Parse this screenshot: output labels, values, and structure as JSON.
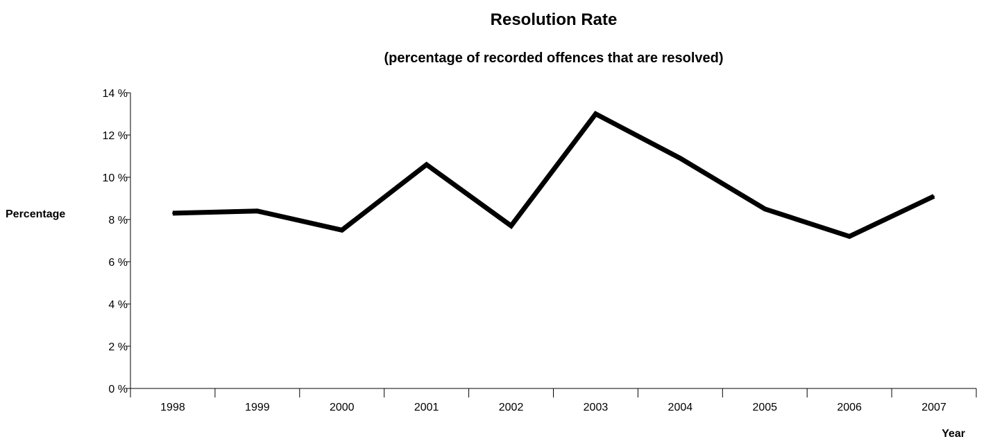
{
  "chart_data": {
    "type": "line",
    "title": "Resolution Rate",
    "subtitle": "(percentage of recorded offences that are resolved)",
    "xlabel": "Year",
    "ylabel": "Percentage",
    "categories": [
      "1998",
      "1999",
      "2000",
      "2001",
      "2002",
      "2003",
      "2004",
      "2005",
      "2006",
      "2007"
    ],
    "series": [
      {
        "values": [
          8.3,
          8.4,
          7.5,
          10.6,
          7.7,
          13.0,
          10.9,
          8.5,
          7.2,
          9.1
        ]
      }
    ],
    "ylim": [
      0,
      14
    ],
    "y_ticks": [
      0,
      2,
      4,
      6,
      8,
      10,
      12,
      14
    ],
    "y_tick_labels": [
      "0 %",
      "2 %",
      "4 %",
      "6 %",
      "8 %",
      "10 %",
      "12 %",
      "14 %"
    ],
    "grid": false,
    "line_color": "#000000"
  }
}
